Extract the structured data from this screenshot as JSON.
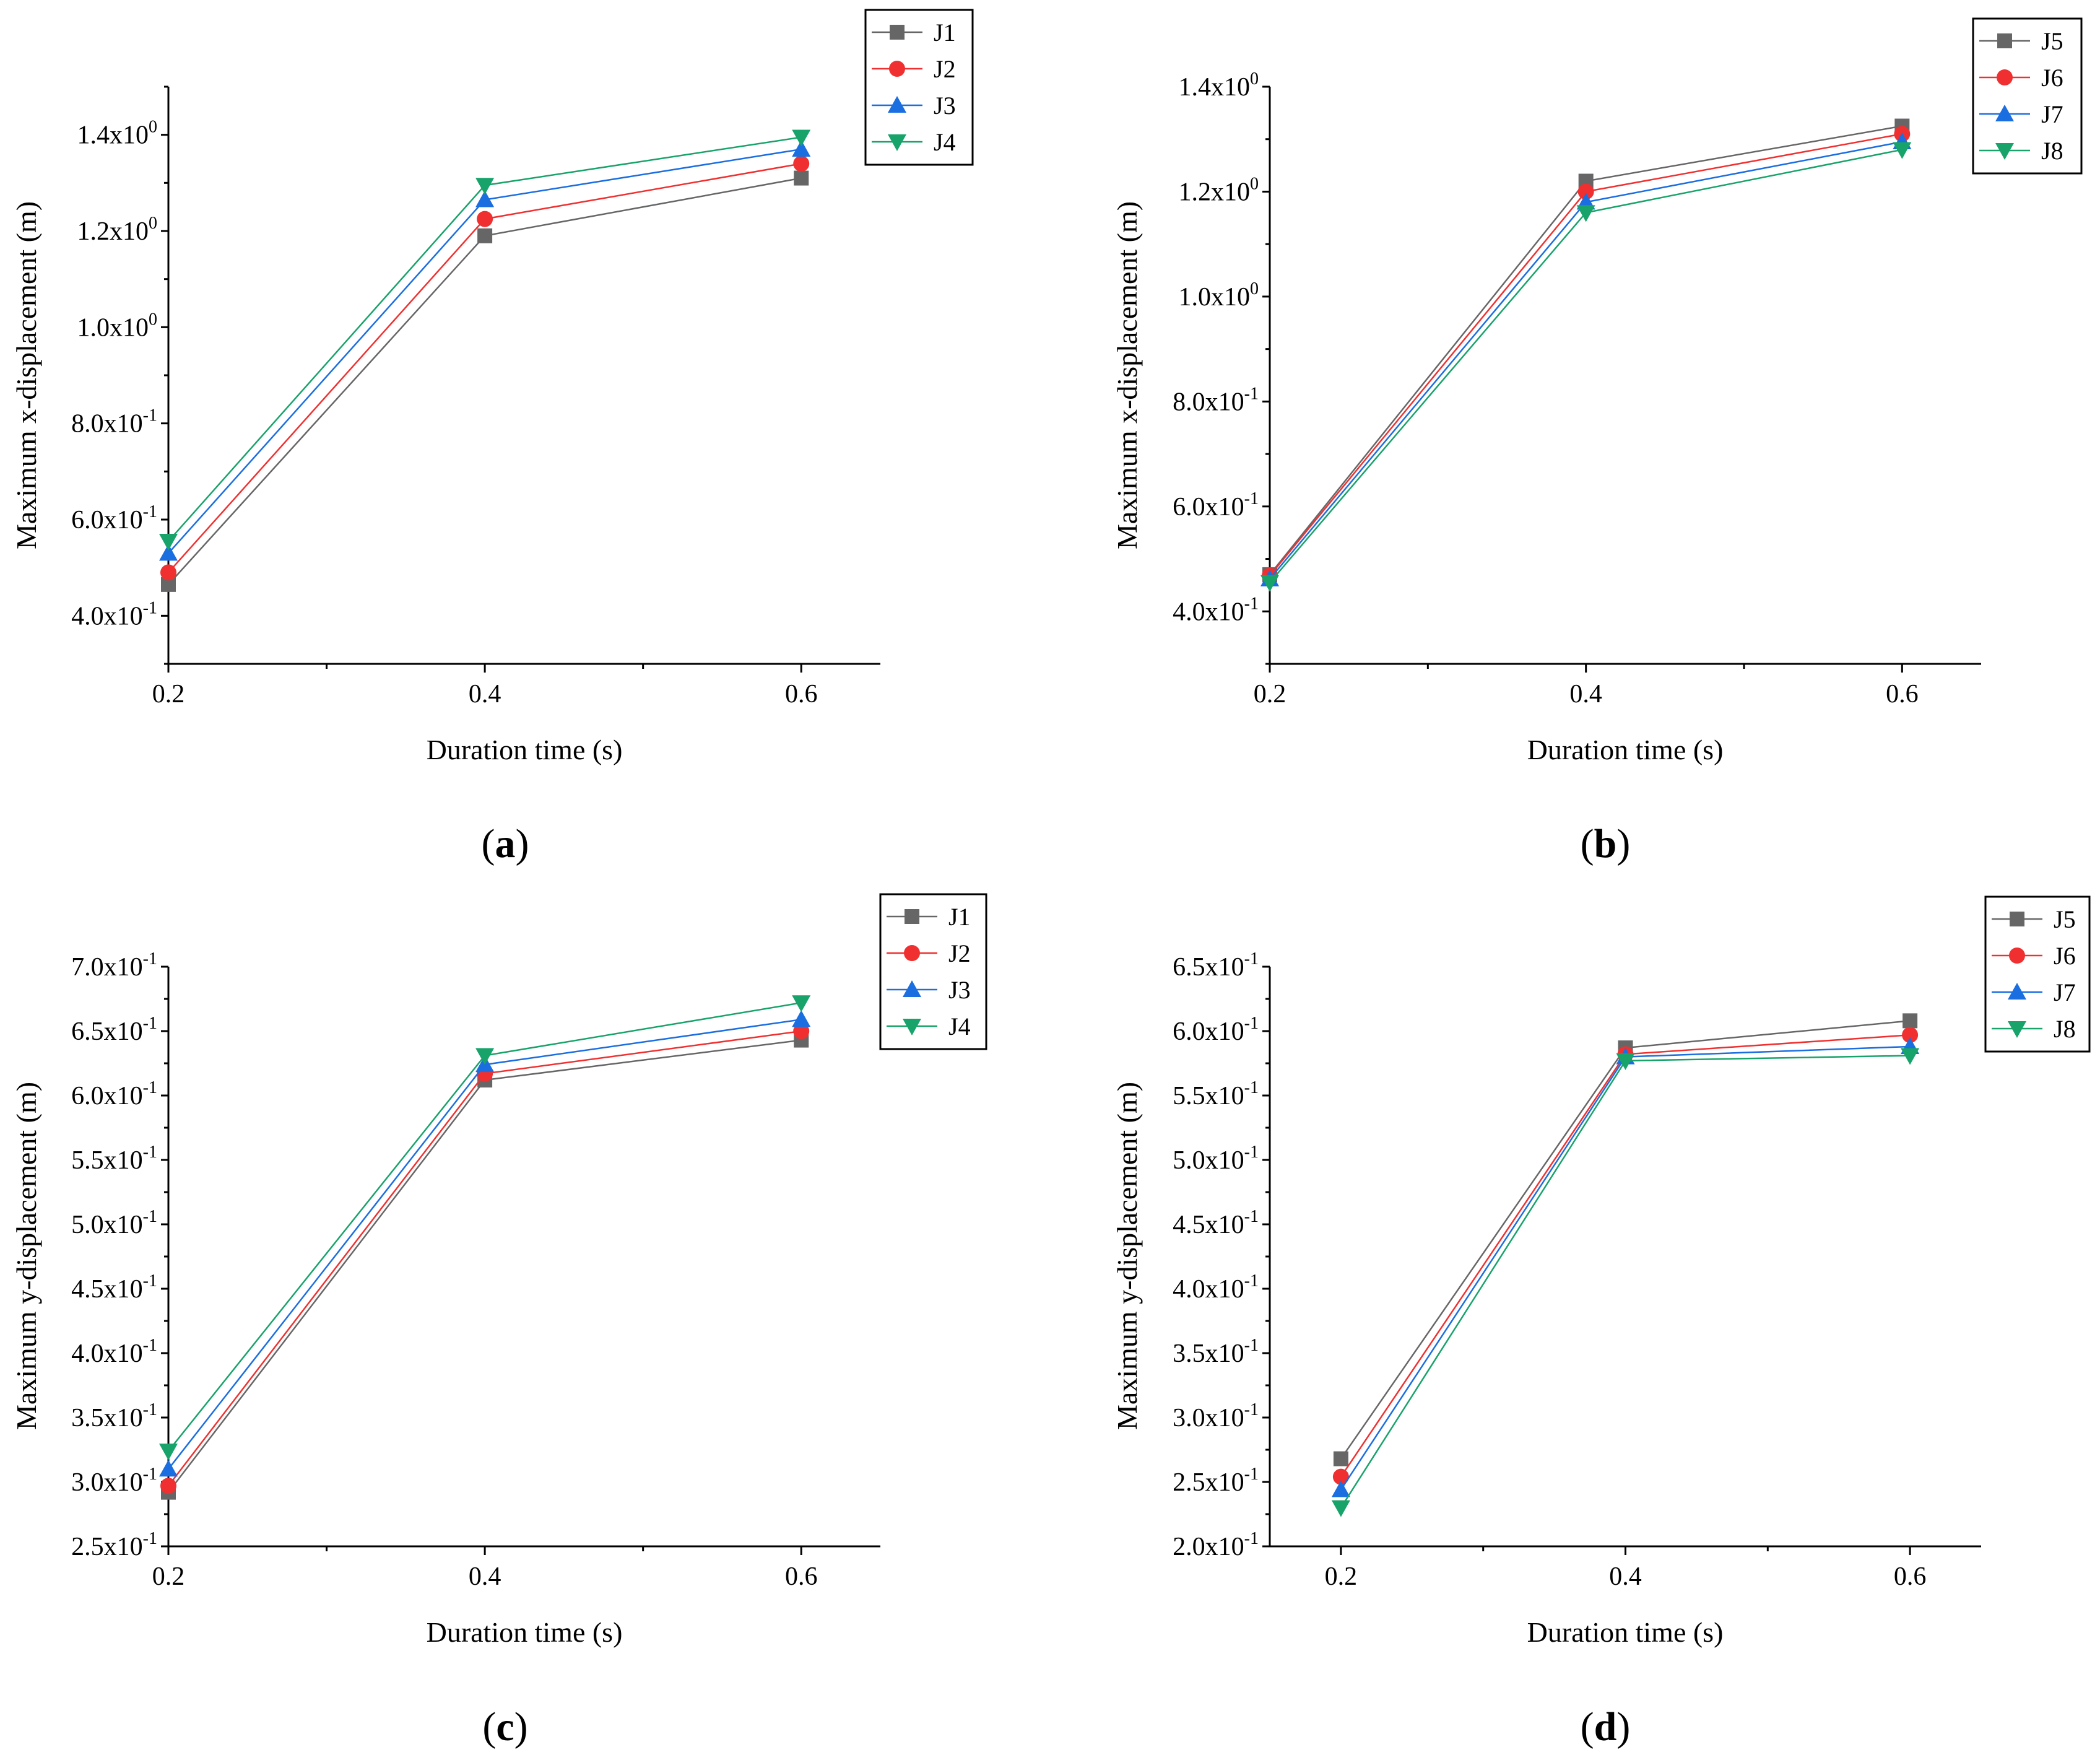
{
  "chart_data": [
    {
      "panel": "(a)",
      "panel_letter": "a",
      "type": "line",
      "xlabel": "Duration time (s)",
      "ylabel": "Maximum x-displacement (m)",
      "x": [
        0.2,
        0.4,
        0.6
      ],
      "xlim": [
        0.2,
        0.65
      ],
      "ylim": [
        0.3,
        1.5
      ],
      "xticks": [
        {
          "value": 0.2,
          "label": "0.2"
        },
        {
          "value": 0.4,
          "label": "0.4"
        },
        {
          "value": 0.6,
          "label": "0.6"
        }
      ],
      "yticks": [
        {
          "value": 0.4,
          "mantissa": "4.0x10",
          "exp": "-1"
        },
        {
          "value": 0.6,
          "mantissa": "6.0x10",
          "exp": "-1"
        },
        {
          "value": 0.8,
          "mantissa": "8.0x10",
          "exp": "-1"
        },
        {
          "value": 1.0,
          "mantissa": "1.0x10",
          "exp": "0"
        },
        {
          "value": 1.2,
          "mantissa": "1.2x10",
          "exp": "0"
        },
        {
          "value": 1.4,
          "mantissa": "1.4x10",
          "exp": "0"
        }
      ],
      "series": [
        {
          "name": "J1",
          "color": "#666666",
          "marker": "square",
          "values": [
            0.465,
            1.19,
            1.31
          ]
        },
        {
          "name": "J2",
          "color": "#f03030",
          "marker": "circle",
          "values": [
            0.49,
            1.225,
            1.34
          ]
        },
        {
          "name": "J3",
          "color": "#1a6ee0",
          "marker": "triangle-up",
          "values": [
            0.53,
            1.265,
            1.37
          ]
        },
        {
          "name": "J4",
          "color": "#17a36a",
          "marker": "triangle-down",
          "values": [
            0.555,
            1.295,
            1.395
          ]
        }
      ]
    },
    {
      "panel": "(b)",
      "panel_letter": "b",
      "type": "line",
      "xlabel": "Duration time (s)",
      "ylabel": "Maximum x-displacement (m)",
      "x": [
        0.2,
        0.4,
        0.6
      ],
      "xlim": [
        0.2,
        0.65
      ],
      "ylim": [
        0.3,
        1.4
      ],
      "xticks": [
        {
          "value": 0.2,
          "label": "0.2"
        },
        {
          "value": 0.4,
          "label": "0.4"
        },
        {
          "value": 0.6,
          "label": "0.6"
        }
      ],
      "yticks": [
        {
          "value": 0.4,
          "mantissa": "4.0x10",
          "exp": "-1"
        },
        {
          "value": 0.6,
          "mantissa": "6.0x10",
          "exp": "-1"
        },
        {
          "value": 0.8,
          "mantissa": "8.0x10",
          "exp": "-1"
        },
        {
          "value": 1.0,
          "mantissa": "1.0x10",
          "exp": "0"
        },
        {
          "value": 1.2,
          "mantissa": "1.2x10",
          "exp": "0"
        },
        {
          "value": 1.4,
          "mantissa": "1.4x10",
          "exp": "0"
        }
      ],
      "series": [
        {
          "name": "J5",
          "color": "#666666",
          "marker": "square",
          "values": [
            0.47,
            1.22,
            1.325
          ]
        },
        {
          "name": "J6",
          "color": "#f03030",
          "marker": "circle",
          "values": [
            0.468,
            1.2,
            1.31
          ]
        },
        {
          "name": "J7",
          "color": "#1a6ee0",
          "marker": "triangle-up",
          "values": [
            0.462,
            1.18,
            1.295
          ]
        },
        {
          "name": "J8",
          "color": "#17a36a",
          "marker": "triangle-down",
          "values": [
            0.455,
            1.16,
            1.28
          ]
        }
      ]
    },
    {
      "panel": "(c)",
      "panel_letter": "c",
      "type": "line",
      "xlabel": "Duration time (s)",
      "ylabel": "Maximum y-displacement (m)",
      "x": [
        0.2,
        0.4,
        0.6
      ],
      "xlim": [
        0.2,
        0.65
      ],
      "ylim": [
        0.25,
        0.7
      ],
      "xticks": [
        {
          "value": 0.2,
          "label": "0.2"
        },
        {
          "value": 0.4,
          "label": "0.4"
        },
        {
          "value": 0.6,
          "label": "0.6"
        }
      ],
      "yticks": [
        {
          "value": 0.25,
          "mantissa": "2.5x10",
          "exp": "-1"
        },
        {
          "value": 0.3,
          "mantissa": "3.0x10",
          "exp": "-1"
        },
        {
          "value": 0.35,
          "mantissa": "3.5x10",
          "exp": "-1"
        },
        {
          "value": 0.4,
          "mantissa": "4.0x10",
          "exp": "-1"
        },
        {
          "value": 0.45,
          "mantissa": "4.5x10",
          "exp": "-1"
        },
        {
          "value": 0.5,
          "mantissa": "5.0x10",
          "exp": "-1"
        },
        {
          "value": 0.55,
          "mantissa": "5.5x10",
          "exp": "-1"
        },
        {
          "value": 0.6,
          "mantissa": "6.0x10",
          "exp": "-1"
        },
        {
          "value": 0.65,
          "mantissa": "6.5x10",
          "exp": "-1"
        },
        {
          "value": 0.7,
          "mantissa": "7.0x10",
          "exp": "-1"
        }
      ],
      "series": [
        {
          "name": "J1",
          "color": "#666666",
          "marker": "square",
          "values": [
            0.292,
            0.612,
            0.643
          ]
        },
        {
          "name": "J2",
          "color": "#f03030",
          "marker": "circle",
          "values": [
            0.297,
            0.617,
            0.65
          ]
        },
        {
          "name": "J3",
          "color": "#1a6ee0",
          "marker": "triangle-up",
          "values": [
            0.31,
            0.624,
            0.659
          ]
        },
        {
          "name": "J4",
          "color": "#17a36a",
          "marker": "triangle-down",
          "values": [
            0.324,
            0.631,
            0.672
          ]
        }
      ]
    },
    {
      "panel": "(d)",
      "panel_letter": "d",
      "type": "line",
      "xlabel": "Duration time (s)",
      "ylabel": "Maximum y-displacement (m)",
      "x": [
        0.2,
        0.4,
        0.6
      ],
      "xlim": [
        0.15,
        0.65
      ],
      "ylim": [
        0.2,
        0.65
      ],
      "xticks": [
        {
          "value": 0.2,
          "label": "0.2"
        },
        {
          "value": 0.4,
          "label": "0.4"
        },
        {
          "value": 0.6,
          "label": "0.6"
        }
      ],
      "yticks": [
        {
          "value": 0.2,
          "mantissa": "2.0x10",
          "exp": "-1"
        },
        {
          "value": 0.25,
          "mantissa": "2.5x10",
          "exp": "-1"
        },
        {
          "value": 0.3,
          "mantissa": "3.0x10",
          "exp": "-1"
        },
        {
          "value": 0.35,
          "mantissa": "3.5x10",
          "exp": "-1"
        },
        {
          "value": 0.4,
          "mantissa": "4.0x10",
          "exp": "-1"
        },
        {
          "value": 0.45,
          "mantissa": "4.5x10",
          "exp": "-1"
        },
        {
          "value": 0.5,
          "mantissa": "5.0x10",
          "exp": "-1"
        },
        {
          "value": 0.55,
          "mantissa": "5.5x10",
          "exp": "-1"
        },
        {
          "value": 0.6,
          "mantissa": "6.0x10",
          "exp": "-1"
        },
        {
          "value": 0.65,
          "mantissa": "6.5x10",
          "exp": "-1"
        }
      ],
      "series": [
        {
          "name": "J5",
          "color": "#666666",
          "marker": "square",
          "values": [
            0.268,
            0.587,
            0.608
          ]
        },
        {
          "name": "J6",
          "color": "#f03030",
          "marker": "circle",
          "values": [
            0.254,
            0.582,
            0.597
          ]
        },
        {
          "name": "J7",
          "color": "#1a6ee0",
          "marker": "triangle-up",
          "values": [
            0.244,
            0.58,
            0.588
          ]
        },
        {
          "name": "J8",
          "color": "#17a36a",
          "marker": "triangle-down",
          "values": [
            0.23,
            0.577,
            0.581
          ]
        }
      ]
    }
  ]
}
